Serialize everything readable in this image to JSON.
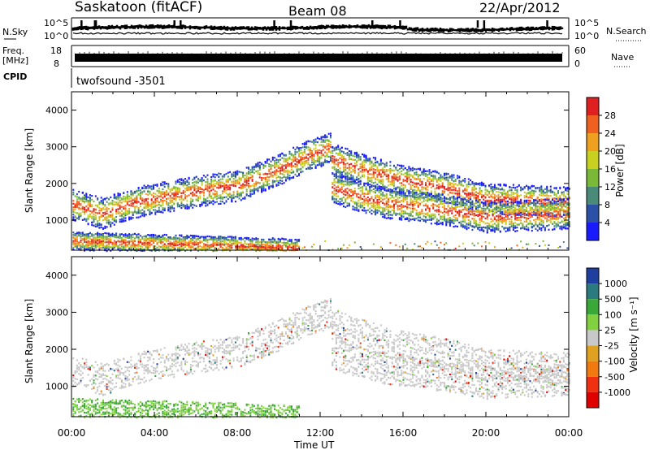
{
  "header": {
    "title": "Saskatoon (fitACF)",
    "beam": "Beam 08",
    "date": "22/Apr/2012"
  },
  "summary_panels": {
    "nsky_label": "N.Sky",
    "nsky_ticks": [
      "10^5",
      "10^0"
    ],
    "nsearch_label": "N.Search",
    "nsearch_ticks": [
      "10^5",
      "10^0"
    ],
    "freq_label": "Freq.",
    "freq_unit": "[MHz]",
    "freq_ticks": [
      "18",
      "8"
    ],
    "nave_label": "Nave",
    "nave_ticks": [
      "60",
      "0"
    ],
    "cpid_label": "CPID",
    "cpid_value": "twofsound -3501"
  },
  "chart_data": [
    {
      "type": "heatmap",
      "name": "power",
      "ylabel": "Slant Range [km]",
      "yticks": [
        "1000",
        "2000",
        "3000",
        "4000"
      ],
      "ylim": [
        180,
        4500
      ],
      "xlim": [
        0,
        24
      ],
      "colorbar_label": "Power [dB]",
      "colorbar_ticks": [
        "4",
        "8",
        "12",
        "16",
        "20",
        "24",
        "28"
      ],
      "colorbar_colors": [
        "#1a1aff",
        "#2a50a8",
        "#4a8a78",
        "#7ab838",
        "#c8d020",
        "#f0a020",
        "#f06020",
        "#e02020"
      ],
      "bands": [
        {
          "x": [
            0,
            1.5,
            3,
            6,
            8,
            10,
            11.5,
            12.5
          ],
          "y": [
            1450,
            1200,
            1500,
            1800,
            1950,
            2400,
            2800,
            3000
          ]
        },
        {
          "x": [
            12.5,
            14,
            16,
            18,
            20,
            22,
            24
          ],
          "y": [
            2700,
            2400,
            2100,
            1900,
            1600,
            1550,
            1500
          ]
        },
        {
          "x": [
            12.5,
            15,
            18,
            20,
            22,
            24
          ],
          "y": [
            1900,
            1500,
            1300,
            1100,
            1150,
            1200
          ]
        },
        {
          "x": [
            0,
            3,
            6,
            9,
            11
          ],
          "y": [
            450,
            400,
            350,
            300,
            250
          ]
        }
      ]
    },
    {
      "type": "heatmap",
      "name": "velocity",
      "ylabel": "Slant Range [km]",
      "yticks": [
        "1000",
        "2000",
        "3000",
        "4000"
      ],
      "ylim": [
        180,
        4500
      ],
      "xlim": [
        0,
        24
      ],
      "xticks": [
        "00:00",
        "04:00",
        "08:00",
        "12:00",
        "16:00",
        "20:00",
        "00:00"
      ],
      "xlabel": "Time UT",
      "colorbar_label": "Velocity [m s⁻¹]",
      "colorbar_ticks": [
        "1000",
        "500",
        "100",
        "25",
        "-25",
        "-100",
        "-500",
        "-1000"
      ],
      "colorbar_colors": [
        "#1f3fa0",
        "#2a7a80",
        "#3aa838",
        "#80d040",
        "#c8c8c8",
        "#e0a020",
        "#f07a10",
        "#f03010",
        "#e00000"
      ]
    }
  ]
}
